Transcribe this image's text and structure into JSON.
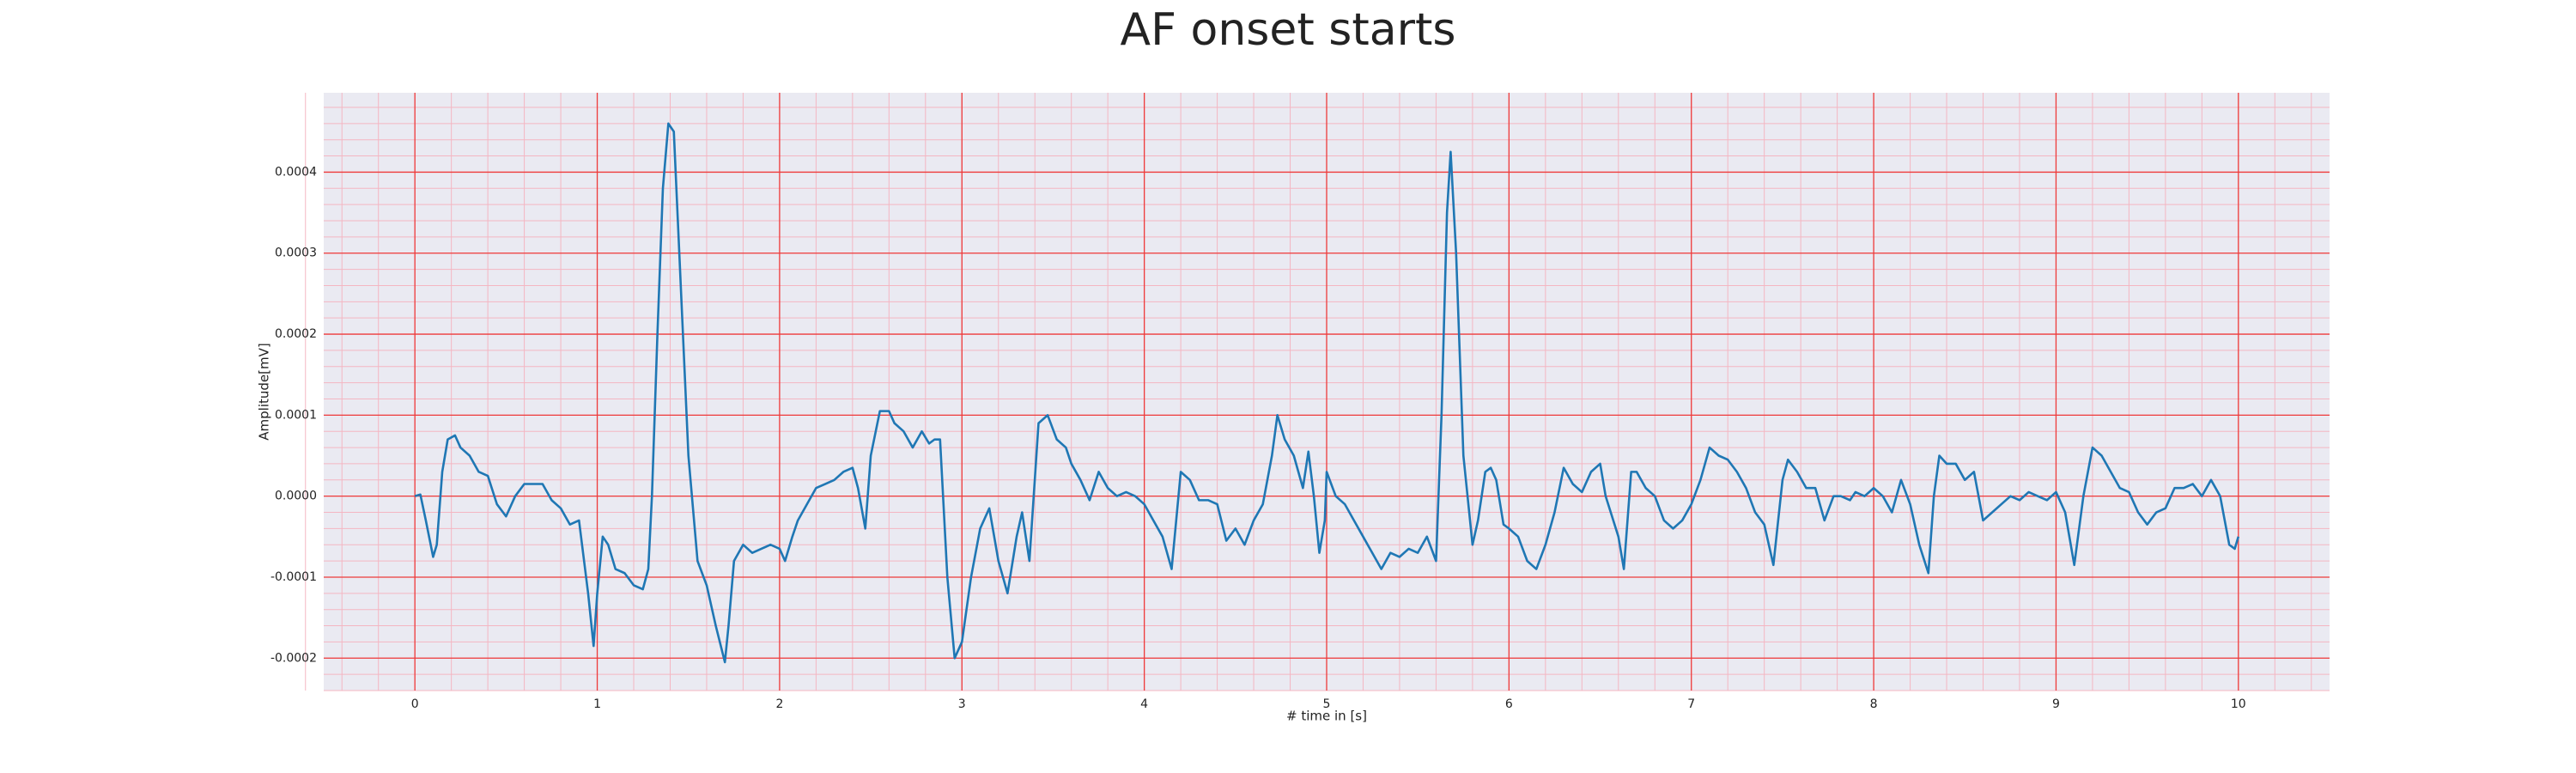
{
  "chart_data": {
    "type": "line",
    "title": "AF onset starts",
    "x_label": "# time in [s]",
    "y_label": "Amplitude[mV]",
    "color": "#1f77b4",
    "grid": true,
    "minor_grid": true,
    "xlim": [
      -0.5,
      10.5
    ],
    "xticks": [
      0,
      1,
      2,
      3,
      4,
      5,
      6,
      7,
      8,
      9,
      10
    ],
    "ylim": [
      -0.00024,
      0.000498
    ],
    "yticks": [
      -0.0002,
      -0.0001,
      {
        "value": 0,
        "label": "0.0000"
      },
      0.0001,
      0.0002,
      0.0003,
      0.0004
    ],
    "x": [
      0.0,
      0.03,
      0.06,
      0.1,
      0.12,
      0.15,
      0.18,
      0.22,
      0.25,
      0.3,
      0.35,
      0.4,
      0.45,
      0.5,
      0.55,
      0.6,
      0.65,
      0.7,
      0.75,
      0.8,
      0.85,
      0.9,
      0.95,
      0.98,
      1.0,
      1.03,
      1.06,
      1.1,
      1.15,
      1.2,
      1.25,
      1.28,
      1.3,
      1.33,
      1.36,
      1.39,
      1.42,
      1.45,
      1.5,
      1.55,
      1.6,
      1.65,
      1.7,
      1.72,
      1.75,
      1.8,
      1.85,
      1.9,
      1.95,
      2.0,
      2.03,
      2.07,
      2.1,
      2.15,
      2.2,
      2.25,
      2.3,
      2.35,
      2.4,
      2.43,
      2.47,
      2.5,
      2.55,
      2.6,
      2.63,
      2.68,
      2.73,
      2.78,
      2.82,
      2.85,
      2.88,
      2.92,
      2.96,
      3.0,
      3.05,
      3.1,
      3.15,
      3.2,
      3.25,
      3.3,
      3.33,
      3.37,
      3.42,
      3.47,
      3.52,
      3.57,
      3.6,
      3.65,
      3.7,
      3.75,
      3.8,
      3.85,
      3.9,
      3.95,
      4.0,
      4.05,
      4.1,
      4.15,
      4.2,
      4.25,
      4.3,
      4.35,
      4.4,
      4.45,
      4.5,
      4.55,
      4.6,
      4.65,
      4.7,
      4.73,
      4.77,
      4.82,
      4.87,
      4.9,
      4.93,
      4.96,
      4.99,
      5.0,
      5.05,
      5.1,
      5.15,
      5.2,
      5.25,
      5.3,
      5.35,
      5.4,
      5.45,
      5.5,
      5.55,
      5.6,
      5.63,
      5.66,
      5.68,
      5.71,
      5.75,
      5.8,
      5.83,
      5.87,
      5.9,
      5.93,
      5.97,
      6.0,
      6.05,
      6.1,
      6.15,
      6.2,
      6.25,
      6.3,
      6.35,
      6.4,
      6.45,
      6.5,
      6.53,
      6.6,
      6.63,
      6.67,
      6.7,
      6.75,
      6.8,
      6.85,
      6.9,
      6.95,
      7.0,
      7.05,
      7.1,
      7.15,
      7.2,
      7.25,
      7.3,
      7.35,
      7.4,
      7.45,
      7.5,
      7.53,
      7.58,
      7.63,
      7.68,
      7.73,
      7.78,
      7.82,
      7.87,
      7.9,
      7.95,
      8.0,
      8.05,
      8.1,
      8.15,
      8.2,
      8.25,
      8.3,
      8.33,
      8.36,
      8.4,
      8.45,
      8.5,
      8.55,
      8.6,
      8.65,
      8.7,
      8.75,
      8.8,
      8.85,
      8.9,
      8.95,
      9.0,
      9.05,
      9.1,
      9.15,
      9.2,
      9.25,
      9.3,
      9.35,
      9.4,
      9.45,
      9.5,
      9.55,
      9.6,
      9.65,
      9.7,
      9.75,
      9.8,
      9.85,
      9.9,
      9.95,
      9.98,
      10.0
    ],
    "values": [
      0,
      2e-06,
      -3e-05,
      -7.5e-05,
      -6e-05,
      3e-05,
      7e-05,
      7.5e-05,
      6e-05,
      5e-05,
      3e-05,
      2.5e-05,
      -1e-05,
      -2.5e-05,
      0,
      1.5e-05,
      1.5e-05,
      1.5e-05,
      -5e-06,
      -1.5e-05,
      -3.5e-05,
      -3e-05,
      -0.00012,
      -0.000185,
      -0.00012,
      -5e-05,
      -6e-05,
      -9e-05,
      -9.5e-05,
      -0.00011,
      -0.000115,
      -9e-05,
      0,
      0.0002,
      0.00038,
      0.00046,
      0.00045,
      0.0003,
      5e-05,
      -8e-05,
      -0.00011,
      -0.00016,
      -0.000205,
      -0.00016,
      -8e-05,
      -6e-05,
      -7e-05,
      -6.5e-05,
      -6e-05,
      -6.5e-05,
      -8e-05,
      -5e-05,
      -3e-05,
      -1e-05,
      1e-05,
      1.5e-05,
      2e-05,
      3e-05,
      3.5e-05,
      1e-05,
      -4e-05,
      5e-05,
      0.000105,
      0.000105,
      9e-05,
      8e-05,
      6e-05,
      8e-05,
      6.5e-05,
      7e-05,
      7e-05,
      -0.0001,
      -0.0002,
      -0.00018,
      -0.0001,
      -4e-05,
      -1.5e-05,
      -8e-05,
      -0.00012,
      -5e-05,
      -2e-05,
      -8e-05,
      9e-05,
      0.0001,
      7e-05,
      6e-05,
      4e-05,
      2e-05,
      -5e-06,
      3e-05,
      1e-05,
      0,
      5e-06,
      0,
      -1e-05,
      -3e-05,
      -5e-05,
      -9e-05,
      3e-05,
      2e-05,
      -5e-06,
      -5e-06,
      -1e-05,
      -5.5e-05,
      -4e-05,
      -6e-05,
      -3e-05,
      -1e-05,
      5e-05,
      0.0001,
      7e-05,
      5e-05,
      1e-05,
      5.5e-05,
      0,
      -7e-05,
      -3e-05,
      3e-05,
      0,
      -1e-05,
      -3e-05,
      -5e-05,
      -7e-05,
      -9e-05,
      -7e-05,
      -7.5e-05,
      -6.5e-05,
      -7e-05,
      -5e-05,
      -8e-05,
      0.0001,
      0.00035,
      0.000425,
      0.0003,
      5e-05,
      -6e-05,
      -3e-05,
      3e-05,
      3.5e-05,
      2e-05,
      -3.5e-05,
      -4e-05,
      -5e-05,
      -8e-05,
      -9e-05,
      -6e-05,
      -2e-05,
      3.5e-05,
      1.5e-05,
      5e-06,
      3e-05,
      4e-05,
      0,
      -5e-05,
      -9e-05,
      3e-05,
      3e-05,
      1e-05,
      0,
      -3e-05,
      -4e-05,
      -3e-05,
      -1e-05,
      2e-05,
      6e-05,
      5e-05,
      4.5e-05,
      3e-05,
      1e-05,
      -2e-05,
      -3.5e-05,
      -8.5e-05,
      2e-05,
      4.5e-05,
      3e-05,
      1e-05,
      1e-05,
      -3e-05,
      0,
      0,
      -5e-06,
      5e-06,
      0,
      1e-05,
      0,
      -2e-05,
      2e-05,
      -1e-05,
      -6e-05,
      -9.5e-05,
      0,
      5e-05,
      4e-05,
      4e-05,
      2e-05,
      3e-05,
      -3e-05,
      -2e-05,
      -1e-05,
      0,
      -5e-06,
      5e-06,
      0,
      -5e-06,
      5e-06,
      -2e-05,
      -8.5e-05,
      0,
      6e-05,
      5e-05,
      3e-05,
      1e-05,
      5e-06,
      -2e-05,
      -3.5e-05,
      -2e-05,
      -1.5e-05,
      1e-05,
      1e-05,
      1.5e-05,
      0,
      2e-05,
      0,
      -6e-05,
      -6.5e-05,
      -5e-05
    ]
  }
}
